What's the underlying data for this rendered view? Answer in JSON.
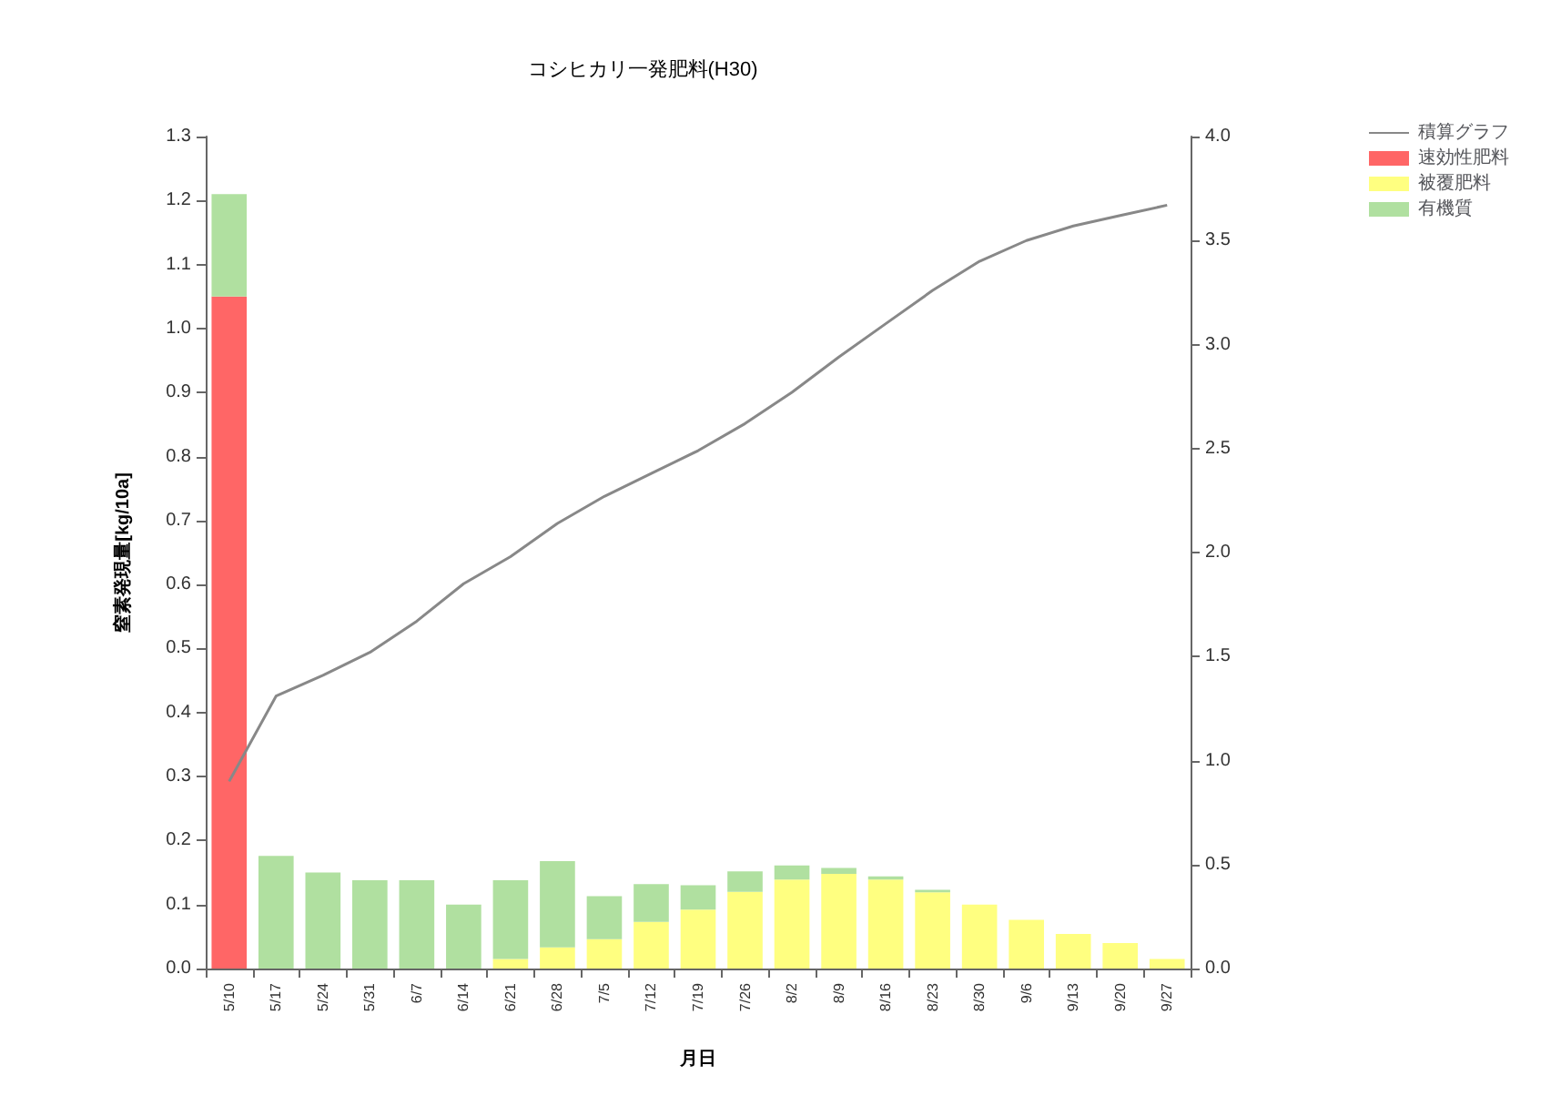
{
  "chart_data": {
    "type": "bar",
    "title": "コシヒカリ一発肥料(H30)",
    "xlabel": "月日",
    "ylabel": "窒素発現量[kg/10a]",
    "stacked": true,
    "legend": "top right",
    "grid": false,
    "categories": [
      "5/10",
      "5/17",
      "5/24",
      "5/31",
      "6/7",
      "6/14",
      "6/21",
      "6/28",
      "7/5",
      "7/12",
      "7/19",
      "7/26",
      "8/2",
      "8/9",
      "8/16",
      "8/23",
      "8/30",
      "9/6",
      "9/13",
      "9/20",
      "9/27"
    ],
    "series": [
      {
        "name": "積算グラフ",
        "type": "line",
        "axis": "y2",
        "color": "#888888",
        "marker": "none",
        "line_style": "solid",
        "values": [
          0.9,
          1.31,
          1.41,
          1.52,
          1.67,
          1.85,
          1.98,
          2.14,
          2.27,
          2.38,
          2.49,
          2.62,
          2.77,
          2.94,
          3.1,
          3.26,
          3.4,
          3.5,
          3.57,
          3.62,
          3.67
        ]
      },
      {
        "name": "速効性肥料",
        "color": "#ff6666",
        "values": [
          1.05,
          0,
          0,
          0,
          0,
          0,
          0,
          0,
          0,
          0,
          0,
          0,
          0,
          0,
          0,
          0,
          0,
          0,
          0,
          0,
          0
        ]
      },
      {
        "name": "被覆肥料",
        "color": "#ffff80",
        "values": [
          0,
          0,
          0,
          0,
          0,
          0,
          0.015,
          0.033,
          0.046,
          0.073,
          0.092,
          0.12,
          0.139,
          0.148,
          0.139,
          0.119,
          0.1,
          0.076,
          0.054,
          0.04,
          0.015
        ]
      },
      {
        "name": "有機質",
        "color": "#b0e0a0",
        "values": [
          0.16,
          0.176,
          0.15,
          0.138,
          0.138,
          0.1,
          0.123,
          0.135,
          0.067,
          0.059,
          0.038,
          0.032,
          0.022,
          0.009,
          0.005,
          0.004,
          0,
          0,
          0,
          0,
          0
        ]
      }
    ],
    "ylim": [
      0,
      1.3
    ],
    "yticks": [
      {
        "value": 0,
        "label": "0.0"
      },
      {
        "value": 0.1,
        "label": "0.1"
      },
      {
        "value": 0.2,
        "label": "0.2"
      },
      {
        "value": 0.3,
        "label": "0.3"
      },
      {
        "value": 0.4,
        "label": "0.4"
      },
      {
        "value": 0.5,
        "label": "0.5"
      },
      {
        "value": 0.6,
        "label": "0.6"
      },
      {
        "value": 0.7,
        "label": "0.7"
      },
      {
        "value": 0.8,
        "label": "0.8"
      },
      {
        "value": 0.9,
        "label": "0.9"
      },
      {
        "value": 1,
        "label": "1.0"
      },
      {
        "value": 1.1,
        "label": "1.1"
      },
      {
        "value": 1.2,
        "label": "1.2"
      },
      {
        "value": 1.3,
        "label": "1.3"
      }
    ],
    "y2lim": [
      0,
      4
    ],
    "y2ticks": [
      {
        "value": 0,
        "label": "0.0"
      },
      {
        "value": 0.5,
        "label": "0.5"
      },
      {
        "value": 1,
        "label": "1.0"
      },
      {
        "value": 1.5,
        "label": "1.5"
      },
      {
        "value": 2,
        "label": "2.0"
      },
      {
        "value": 2.5,
        "label": "2.5"
      },
      {
        "value": 3,
        "label": "3.0"
      },
      {
        "value": 3.5,
        "label": "3.5"
      },
      {
        "value": 4,
        "label": "4.0"
      }
    ]
  }
}
